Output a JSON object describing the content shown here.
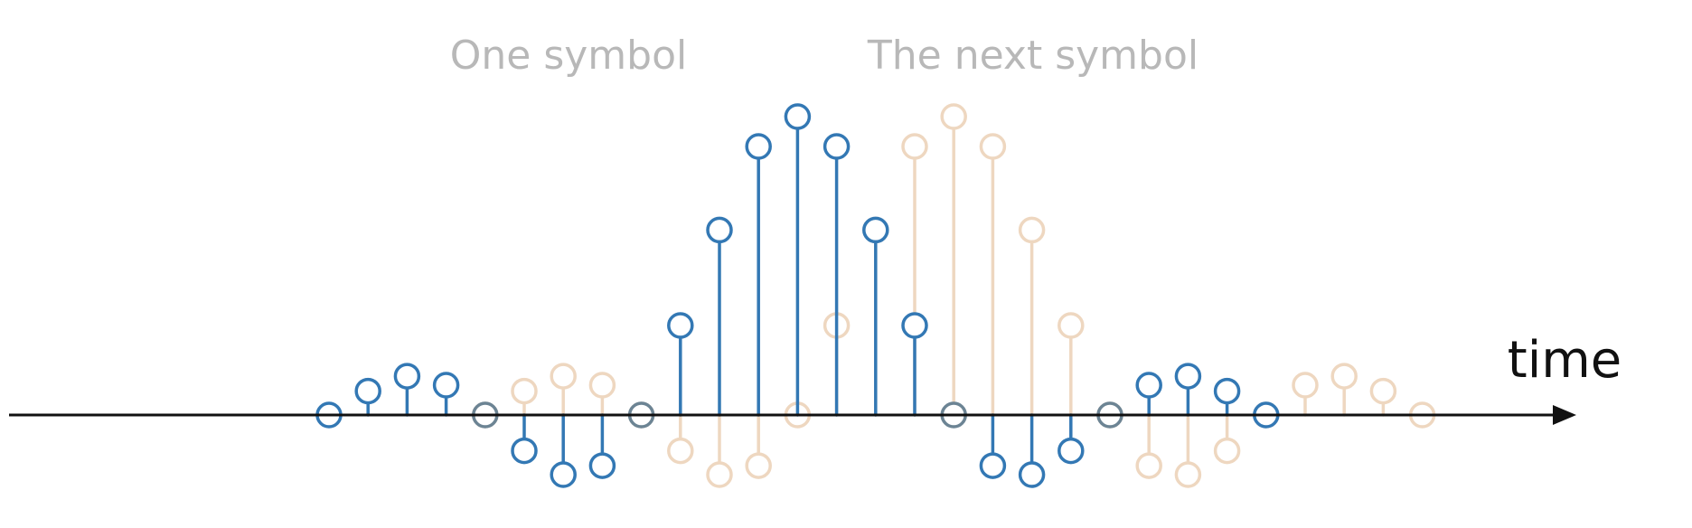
{
  "labels": {
    "symbol_one": "One symbol",
    "symbol_next": "The next symbol",
    "time": "time"
  },
  "colors": {
    "symbol_one": "#3378b4",
    "symbol_next": "#eed7c0",
    "overlap": "#6c8494",
    "axis": "#111111",
    "label_top": "#b8b8b8"
  },
  "chart_data": {
    "type": "stem",
    "title": "",
    "xlabel": "time",
    "ylabel": "",
    "sample_spacing": 1,
    "series": [
      {
        "name": "One symbol",
        "start_index": 0,
        "values": [
          0,
          0.08,
          0.13,
          0.1,
          0,
          -0.12,
          -0.2,
          -0.17,
          0,
          0.3,
          0.62,
          0.9,
          1,
          0.9,
          0.62,
          0.3,
          0,
          -0.17,
          -0.2,
          -0.12,
          0,
          0.1,
          0.13,
          0.08,
          0
        ]
      },
      {
        "name": "The next symbol",
        "start_index": 4,
        "values": [
          0,
          0.08,
          0.13,
          0.1,
          0,
          -0.12,
          -0.2,
          -0.17,
          0,
          0.3,
          0.62,
          0.9,
          1,
          0.9,
          0.62,
          0.3,
          0,
          -0.17,
          -0.2,
          -0.12,
          0,
          0.1,
          0.13,
          0.08,
          0
        ]
      }
    ]
  }
}
